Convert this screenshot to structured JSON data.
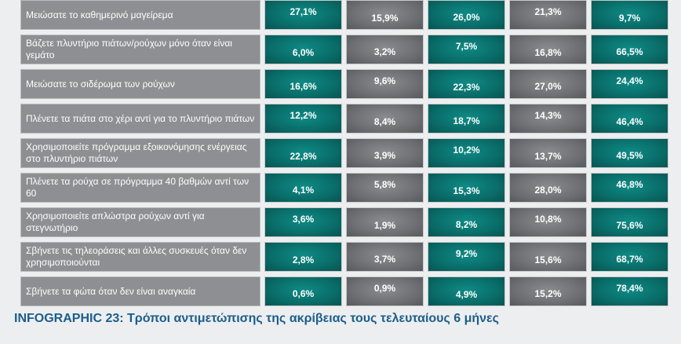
{
  "colors": {
    "teal": "#0a6f6b",
    "grey": "#6e6f72",
    "label_bg": "#8e8f92",
    "caption": "#1b5e8a"
  },
  "column_styles": [
    "teal",
    "grey",
    "teal",
    "grey",
    "teal"
  ],
  "caption": "INFOGRAPHIC 23: Τρόποι αντιμετώπισης της ακρίβειας τους τελευταίους 6 μήνες",
  "chart_data": {
    "type": "table",
    "rows": [
      {
        "label": "Μειώσατε το καθημερινό μαγείρεμα",
        "values": [
          "27,1%",
          "15,9%",
          "26,0%",
          "21,3%",
          "9,7%"
        ]
      },
      {
        "label": "Βάζετε πλυντήριο πιάτων/ρούχων μόνο όταν είναι γεμάτο",
        "values": [
          "6,0%",
          "3,2%",
          "7,5%",
          "16,8%",
          "66,5%"
        ]
      },
      {
        "label": "Μειώσατε το σιδέρωμα των ρούχων",
        "values": [
          "16,6%",
          "9,6%",
          "22,3%",
          "27,0%",
          "24,4%"
        ]
      },
      {
        "label": "Πλένετε τα πιάτα στο χέρι αντί για το πλυντήριο πιάτων",
        "values": [
          "12,2%",
          "8,4%",
          "18,7%",
          "14,3%",
          "46,4%"
        ]
      },
      {
        "label": "Χρησιμοποιείτε πρόγραμμα εξοικονόμησης ενέργειας στο πλυντήριο πιάτων",
        "values": [
          "22,8%",
          "3,9%",
          "10,2%",
          "13,7%",
          "49,5%"
        ]
      },
      {
        "label": "Πλένετε τα ρούχα σε πρόγραμμα 40 βαθμών αντί των 60",
        "values": [
          "4,1%",
          "5,8%",
          "15,3%",
          "28,0%",
          "46,8%"
        ]
      },
      {
        "label": "Χρησιμοποιείτε απλώστρα ρούχων αντί για στεγνωτήριο",
        "values": [
          "3,6%",
          "1,9%",
          "8,2%",
          "10,8%",
          "75,6%"
        ]
      },
      {
        "label": "Σβήνετε τις τηλεοράσεις και άλλες συσκευές όταν δεν χρησιμοποιούνται",
        "values": [
          "2,8%",
          "3,7%",
          "9,2%",
          "15,6%",
          "68,7%"
        ]
      },
      {
        "label": "Σβήνετε τα φώτα όταν δεν είναι αναγκαία",
        "values": [
          "0,6%",
          "0,9%",
          "4,9%",
          "15,2%",
          "78,4%"
        ]
      }
    ]
  }
}
